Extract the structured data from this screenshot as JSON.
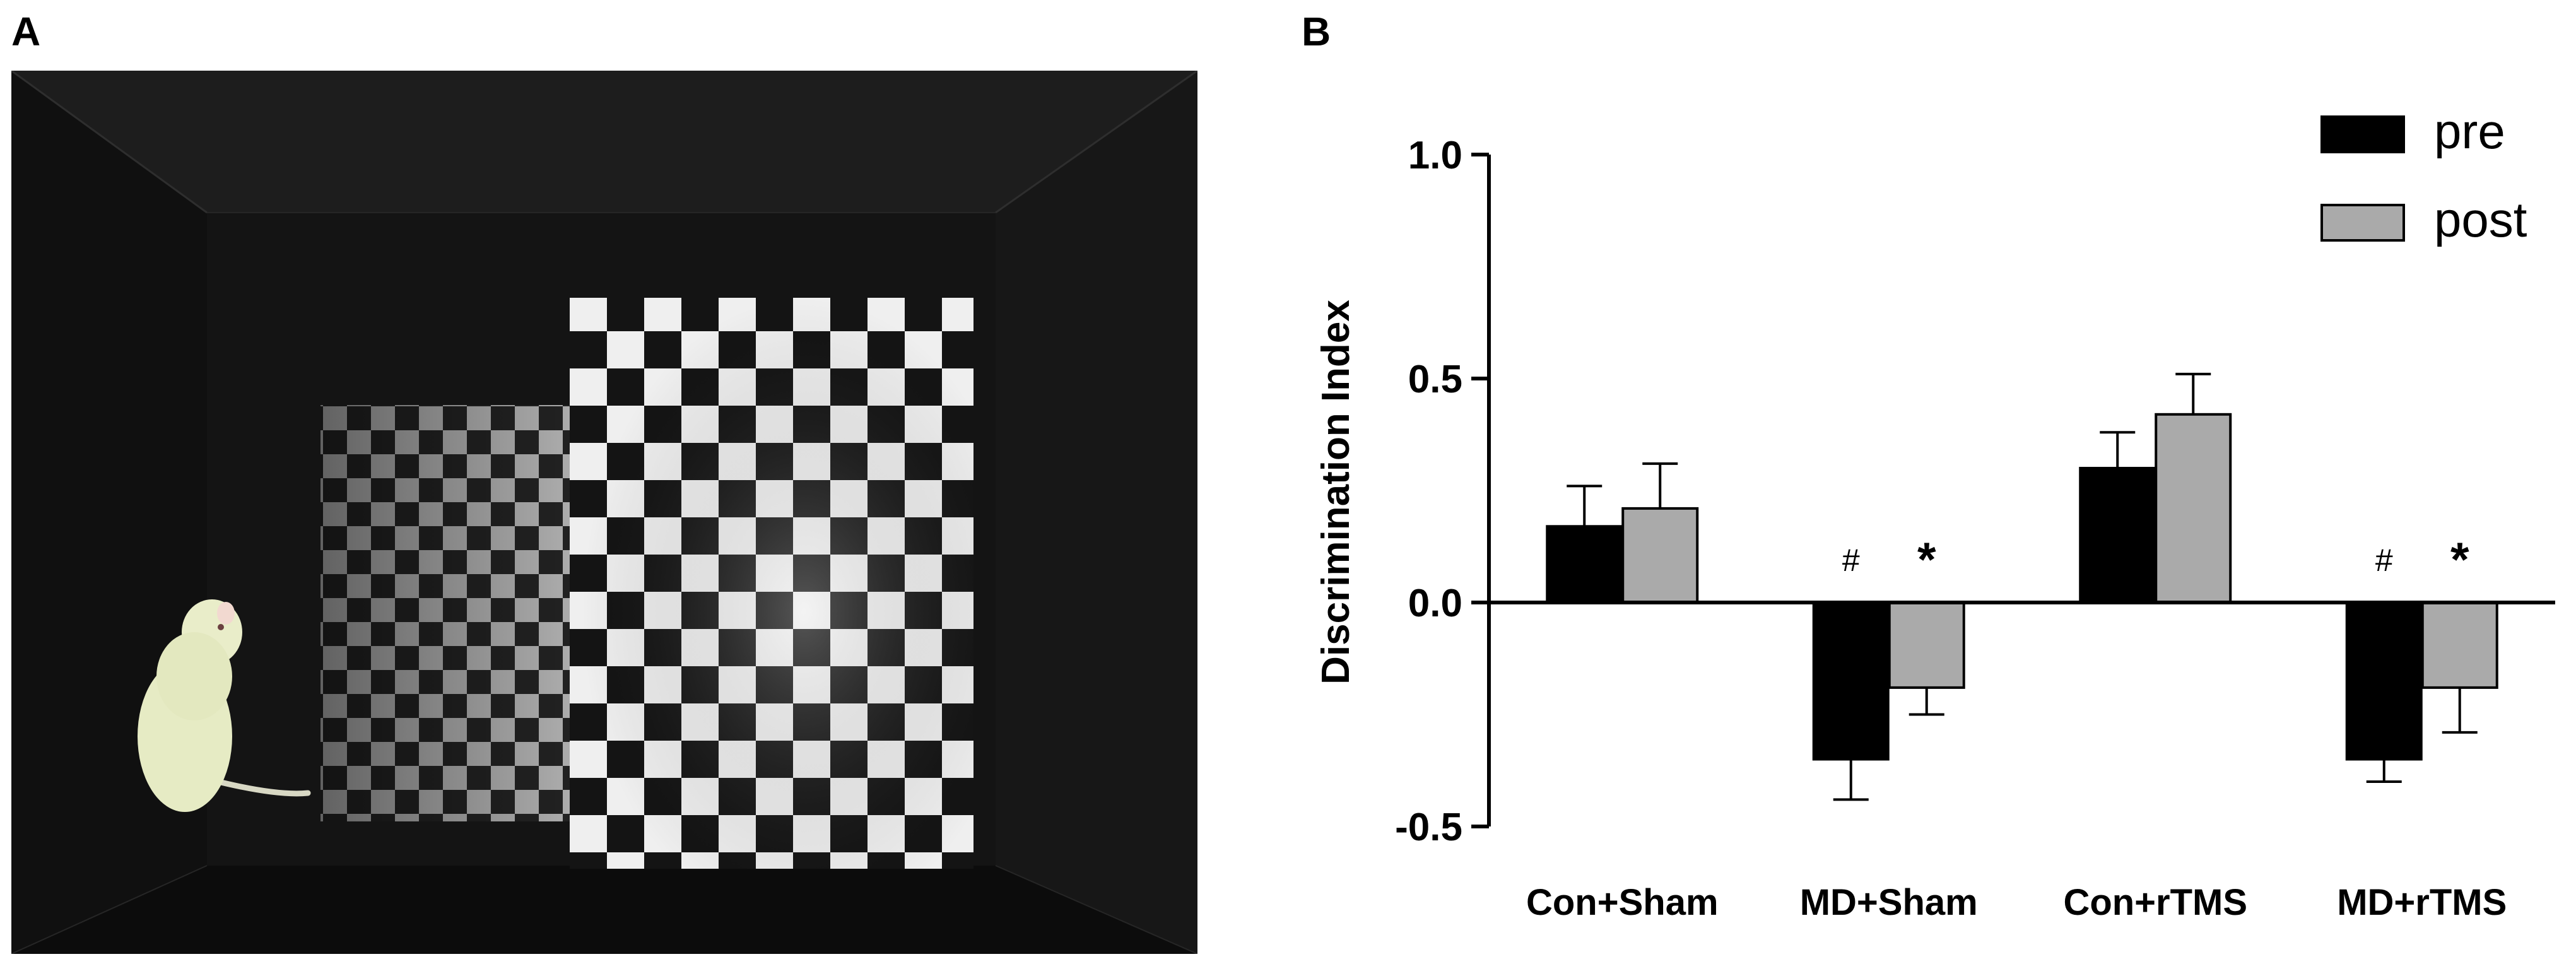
{
  "panels": {
    "a_label": "A",
    "b_label": "B"
  },
  "photo": {},
  "chart_data": {
    "type": "bar",
    "categories": [
      "Con+Sham",
      "MD+Sham",
      "Con+rTMS",
      "MD+rTMS"
    ],
    "series": [
      {
        "name": "pre",
        "values": [
          0.17,
          -0.35,
          0.3,
          -0.35
        ],
        "errors": [
          0.09,
          0.09,
          0.08,
          0.05
        ],
        "color": "#000000"
      },
      {
        "name": "post",
        "values": [
          0.21,
          -0.19,
          0.42,
          -0.19
        ],
        "errors": [
          0.1,
          0.06,
          0.09,
          0.1
        ],
        "color": "#aaaaaa"
      }
    ],
    "ylabel": "Discrimination  Index",
    "ylim": [
      -0.5,
      1.0
    ],
    "yticks": [
      {
        "value": 1.0,
        "label": "1.0"
      },
      {
        "value": 0.5,
        "label": "0.5"
      },
      {
        "value": 0.0,
        "label": "0.0"
      },
      {
        "value": -0.5,
        "label": "-0.5"
      }
    ],
    "legend_position": "top-right",
    "grid": false,
    "annotations": [
      {
        "category": "MD+Sham",
        "series": "pre",
        "text": "#"
      },
      {
        "category": "MD+Sham",
        "series": "post",
        "text": "*"
      },
      {
        "category": "MD+rTMS",
        "series": "pre",
        "text": "#"
      },
      {
        "category": "MD+rTMS",
        "series": "post",
        "text": "*"
      }
    ]
  }
}
